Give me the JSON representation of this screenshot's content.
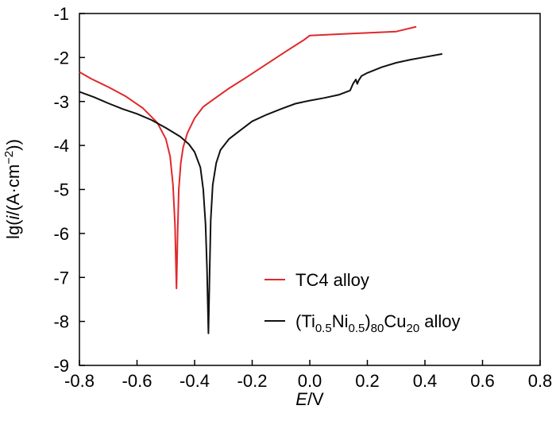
{
  "chart_data": {
    "type": "line",
    "title": "",
    "xlabel": {
      "italic": "E",
      "rest": "/V"
    },
    "ylabel": {
      "pre": "lg(",
      "italic": "i",
      "mid": "/(A·cm",
      "sup": "−2",
      "post": "))"
    },
    "xlim": [
      -0.8,
      0.8
    ],
    "ylim": [
      -9,
      -1
    ],
    "xticks": [
      -0.8,
      -0.6,
      -0.4,
      -0.2,
      0.0,
      0.2,
      0.4,
      0.6,
      0.8
    ],
    "xtick_labels": [
      "-0.8",
      "-0.6",
      "-0.4",
      "-0.2",
      "0.0",
      "0.2",
      "0.4",
      "0.6",
      "0.8"
    ],
    "yticks": [
      -1,
      -2,
      -3,
      -4,
      -5,
      -6,
      -7,
      -8,
      -9
    ],
    "ytick_labels": [
      "-1",
      "-2",
      "-3",
      "-4",
      "-5",
      "-6",
      "-7",
      "-8",
      "-9"
    ],
    "legend_position": "bottom-right",
    "series": [
      {
        "name": "TC4 alloy",
        "legend_parts": [
          [
            "TC4 alloy",
            "n"
          ]
        ],
        "color": "#e0282c",
        "points": [
          [
            -0.8,
            -2.33
          ],
          [
            -0.76,
            -2.48
          ],
          [
            -0.7,
            -2.67
          ],
          [
            -0.64,
            -2.88
          ],
          [
            -0.58,
            -3.15
          ],
          [
            -0.53,
            -3.48
          ],
          [
            -0.5,
            -3.85
          ],
          [
            -0.485,
            -4.25
          ],
          [
            -0.475,
            -4.9
          ],
          [
            -0.468,
            -5.8
          ],
          [
            -0.463,
            -7.25
          ],
          [
            -0.459,
            -6.0
          ],
          [
            -0.455,
            -5.0
          ],
          [
            -0.448,
            -4.4
          ],
          [
            -0.44,
            -4.05
          ],
          [
            -0.425,
            -3.72
          ],
          [
            -0.4,
            -3.38
          ],
          [
            -0.37,
            -3.12
          ],
          [
            -0.33,
            -2.93
          ],
          [
            -0.28,
            -2.7
          ],
          [
            -0.22,
            -2.45
          ],
          [
            -0.15,
            -2.15
          ],
          [
            -0.08,
            -1.85
          ],
          [
            -0.02,
            -1.6
          ],
          [
            0.0,
            -1.5
          ],
          [
            0.1,
            -1.47
          ],
          [
            0.2,
            -1.44
          ],
          [
            0.3,
            -1.41
          ],
          [
            0.37,
            -1.3
          ]
        ]
      },
      {
        "name": "(Ti0.5Ni0.5)80Cu20 alloy",
        "legend_parts": [
          [
            "(Ti",
            "n"
          ],
          [
            "0.5",
            "s"
          ],
          [
            "Ni",
            "n"
          ],
          [
            "0.5",
            "s"
          ],
          [
            ")",
            "n"
          ],
          [
            "80",
            "s"
          ],
          [
            "Cu",
            "n"
          ],
          [
            "20",
            "s"
          ],
          [
            " alloy",
            "n"
          ]
        ],
        "color": "#111111",
        "points": [
          [
            -0.8,
            -2.78
          ],
          [
            -0.75,
            -2.9
          ],
          [
            -0.7,
            -3.04
          ],
          [
            -0.65,
            -3.17
          ],
          [
            -0.6,
            -3.28
          ],
          [
            -0.55,
            -3.42
          ],
          [
            -0.5,
            -3.6
          ],
          [
            -0.45,
            -3.8
          ],
          [
            -0.42,
            -3.97
          ],
          [
            -0.4,
            -4.15
          ],
          [
            -0.38,
            -4.5
          ],
          [
            -0.37,
            -5.0
          ],
          [
            -0.362,
            -5.8
          ],
          [
            -0.357,
            -6.8
          ],
          [
            -0.352,
            -8.27
          ],
          [
            -0.348,
            -6.9
          ],
          [
            -0.344,
            -5.7
          ],
          [
            -0.337,
            -4.9
          ],
          [
            -0.325,
            -4.4
          ],
          [
            -0.31,
            -4.1
          ],
          [
            -0.28,
            -3.85
          ],
          [
            -0.24,
            -3.65
          ],
          [
            -0.2,
            -3.45
          ],
          [
            -0.15,
            -3.3
          ],
          [
            -0.1,
            -3.17
          ],
          [
            -0.05,
            -3.05
          ],
          [
            0.0,
            -2.98
          ],
          [
            0.05,
            -2.92
          ],
          [
            0.1,
            -2.85
          ],
          [
            0.14,
            -2.75
          ],
          [
            0.15,
            -2.6
          ],
          [
            0.16,
            -2.5
          ],
          [
            0.165,
            -2.6
          ],
          [
            0.17,
            -2.52
          ],
          [
            0.18,
            -2.42
          ],
          [
            0.2,
            -2.35
          ],
          [
            0.25,
            -2.22
          ],
          [
            0.3,
            -2.12
          ],
          [
            0.35,
            -2.05
          ],
          [
            0.4,
            -1.99
          ],
          [
            0.46,
            -1.92
          ]
        ]
      }
    ]
  }
}
